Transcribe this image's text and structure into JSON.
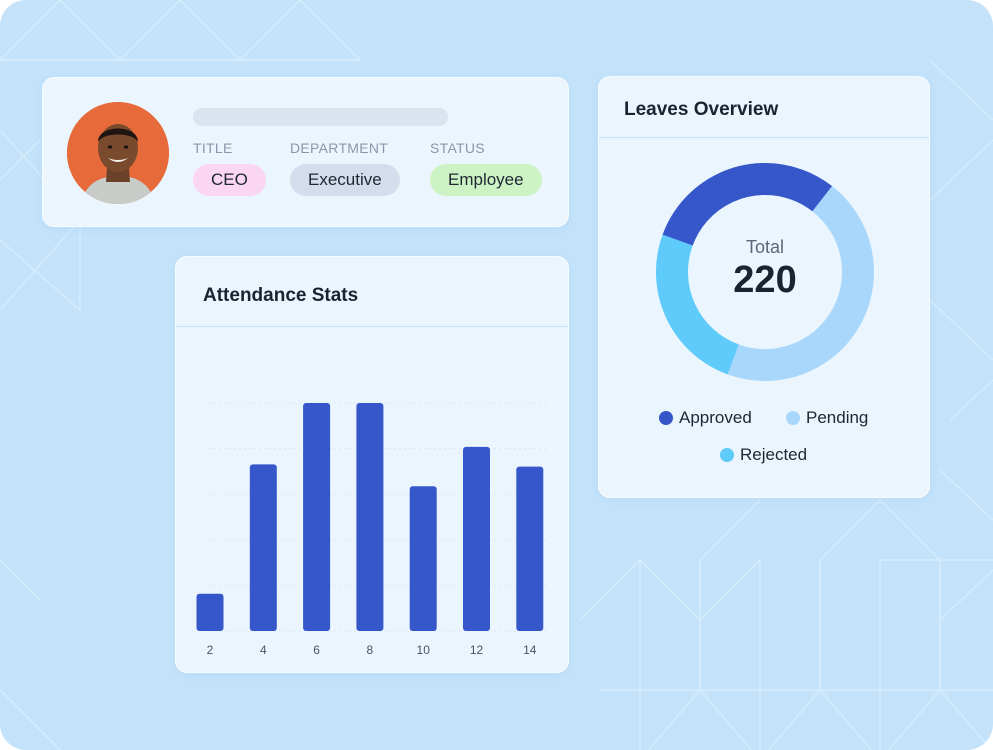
{
  "profile": {
    "fields": [
      {
        "label": "TITLE",
        "value": "CEO"
      },
      {
        "label": "DEPARTMENT",
        "value": "Executive"
      },
      {
        "label": "STATUS",
        "value": "Employee"
      }
    ]
  },
  "attendance": {
    "title": "Attendance Stats",
    "chart_data": {
      "type": "bar",
      "categories": [
        "2",
        "4",
        "6",
        "8",
        "10",
        "12",
        "14"
      ],
      "values": [
        17,
        76,
        104,
        104,
        66,
        84,
        75
      ],
      "ylim": [
        0,
        104
      ],
      "grid": true,
      "bar_color": "#3557c9"
    }
  },
  "leaves": {
    "title": "Leaves Overview",
    "total_label": "Total",
    "total_value": "220",
    "chart_data": {
      "type": "pie",
      "donut": true,
      "total": 220,
      "series": [
        {
          "name": "Approved",
          "value": 66,
          "color": "#3557c9"
        },
        {
          "name": "Pending",
          "value": 99,
          "color": "#a8d7fb"
        },
        {
          "name": "Rejected",
          "value": 55,
          "color": "#5ecbfa"
        }
      ],
      "legend_placement": "bottom"
    }
  }
}
